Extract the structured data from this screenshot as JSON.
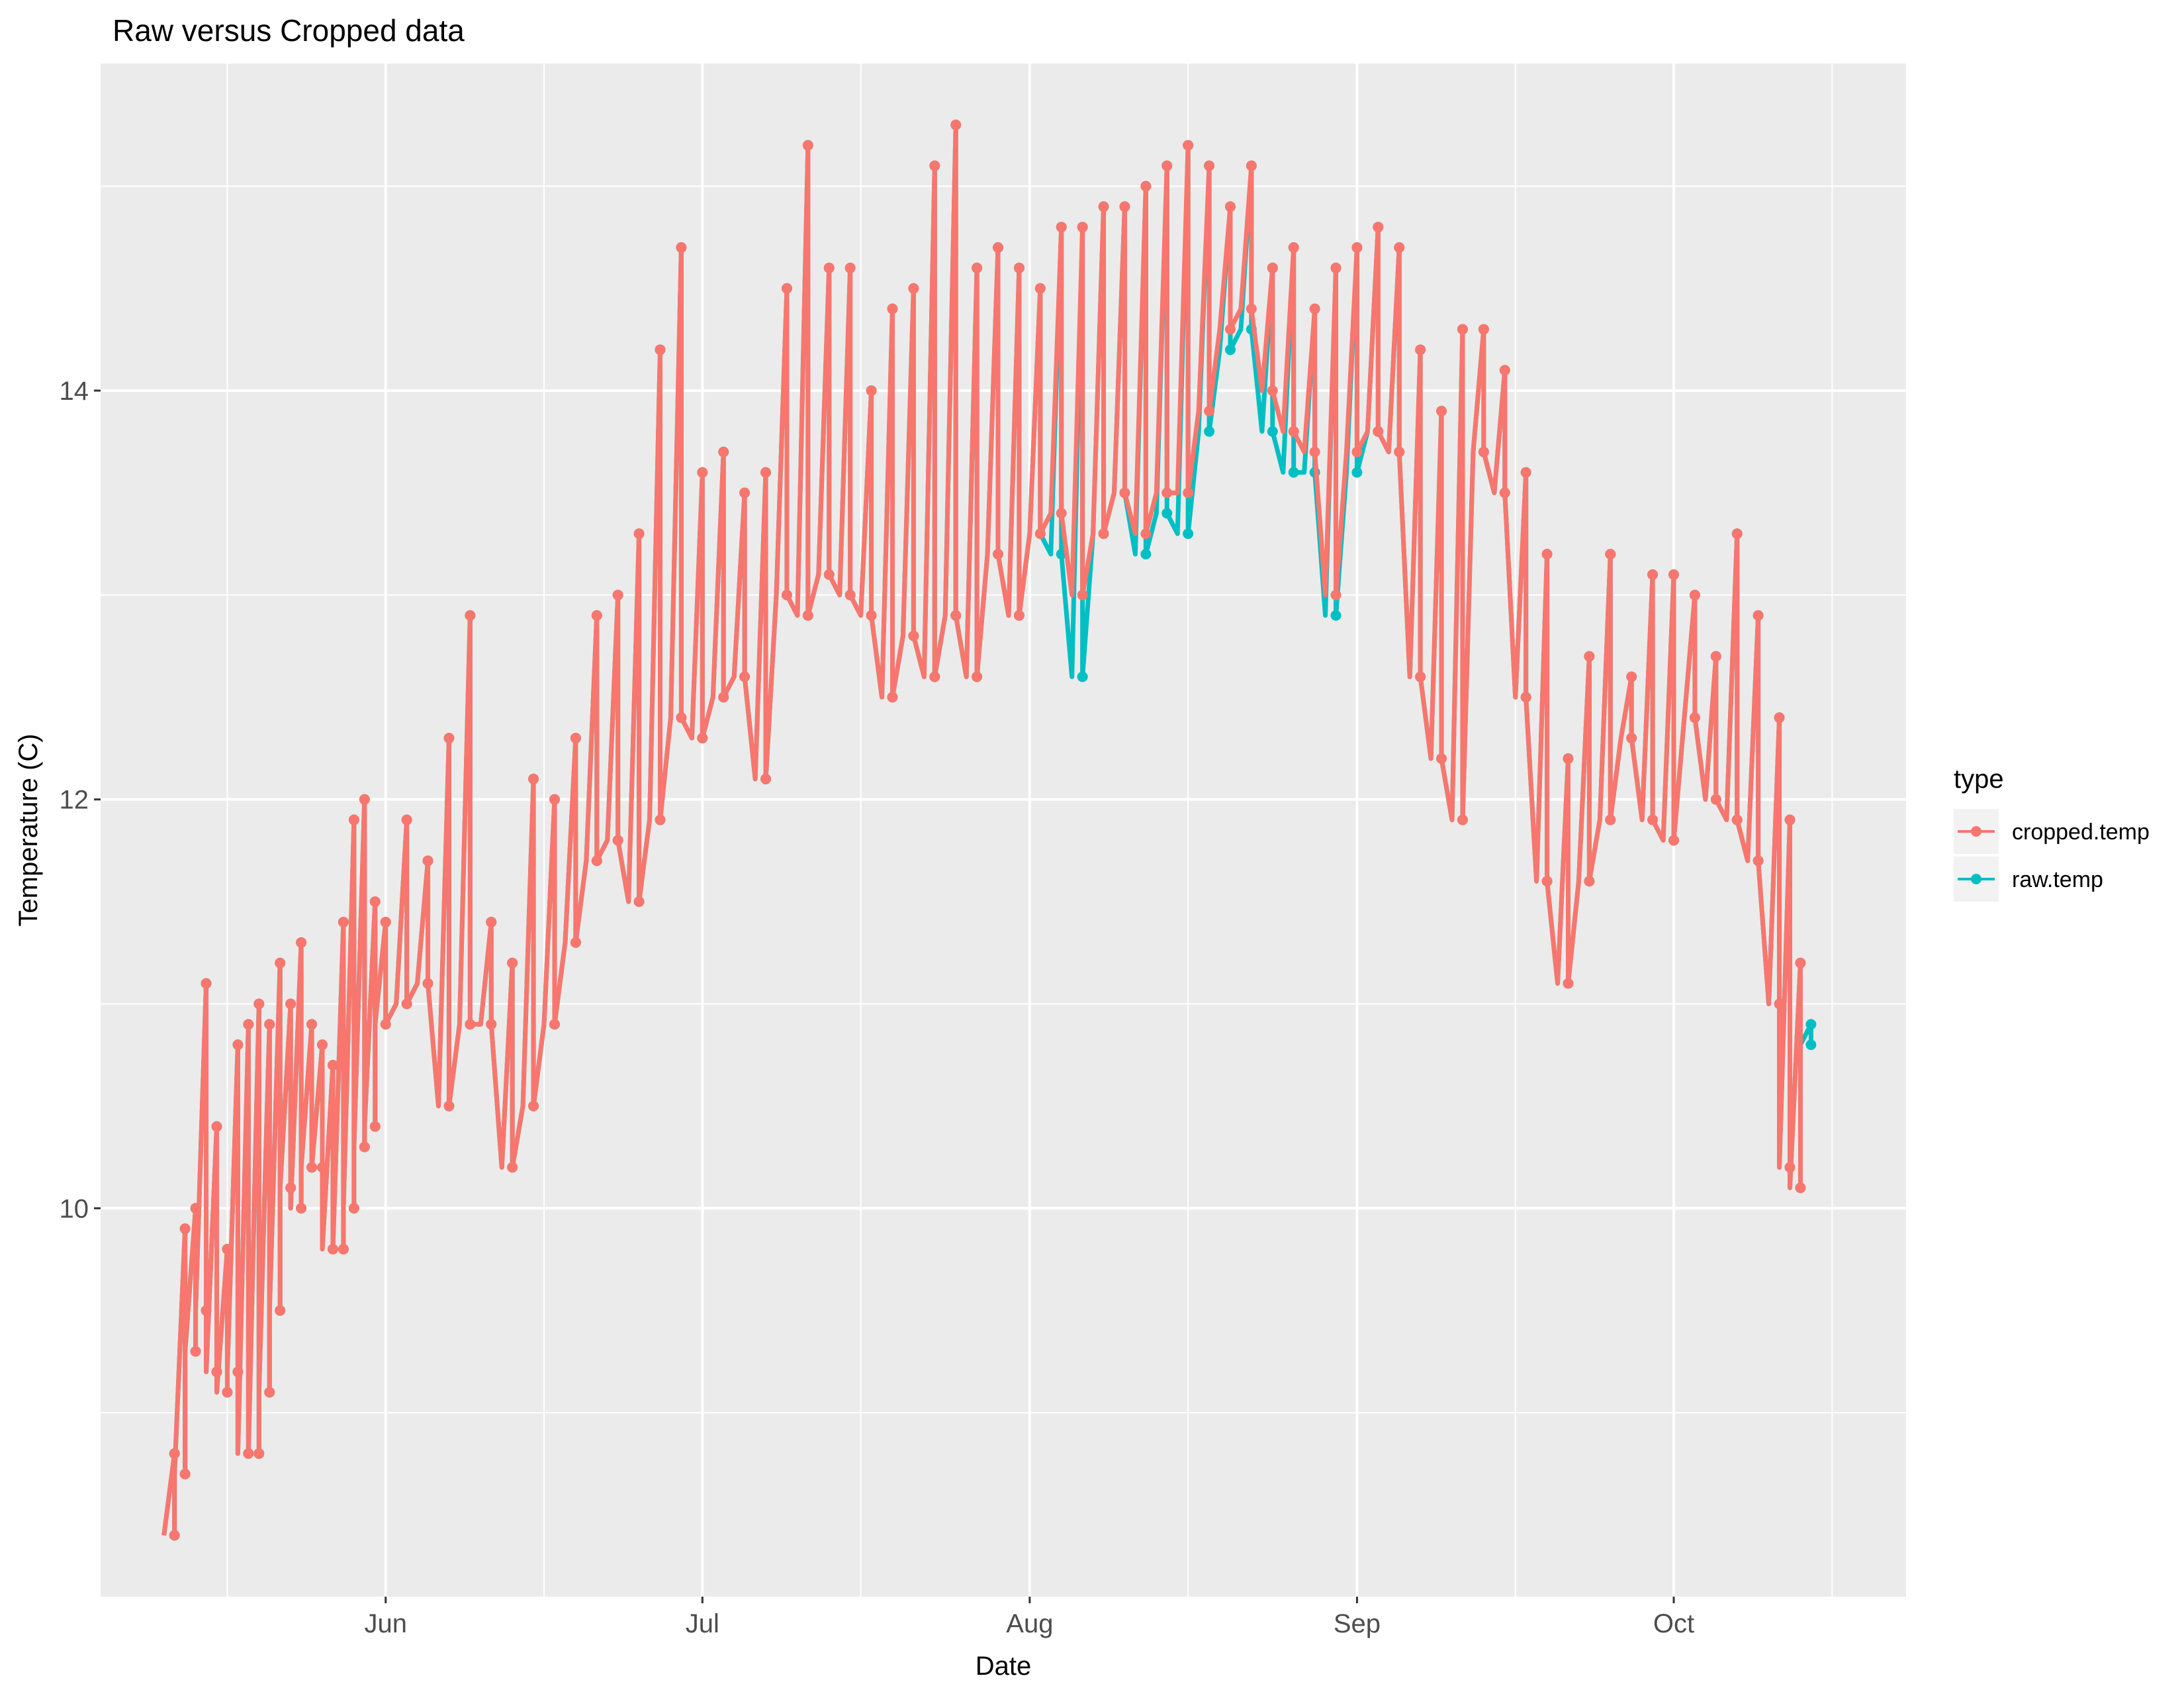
{
  "chart_data": {
    "type": "line",
    "title": "Raw versus Cropped data",
    "xlabel": "Date",
    "ylabel": "Temperature (C)",
    "x_ticks": [
      {
        "label": "Jun",
        "date": "2019-06-01"
      },
      {
        "label": "Jul",
        "date": "2019-07-01"
      },
      {
        "label": "Aug",
        "date": "2019-08-01"
      },
      {
        "label": "Sep",
        "date": "2019-09-01"
      },
      {
        "label": "Oct",
        "date": "2019-10-01"
      }
    ],
    "y_ticks": [
      10,
      12,
      14
    ],
    "xlim": [
      "2019-05-05",
      "2019-10-23"
    ],
    "ylim": [
      8.1,
      15.6
    ],
    "grid": true,
    "legend": {
      "title": "type",
      "position": "right",
      "entries": [
        "cropped.temp",
        "raw.temp"
      ]
    },
    "series": [
      {
        "name": "raw.temp",
        "color": "#00BFC4",
        "x": [
          "2019-05-12",
          "2019-05-13",
          "2019-05-14",
          "2019-05-15",
          "2019-05-16",
          "2019-05-17",
          "2019-05-18",
          "2019-05-19",
          "2019-05-20",
          "2019-05-21",
          "2019-05-22",
          "2019-05-23",
          "2019-05-24",
          "2019-05-25",
          "2019-05-26",
          "2019-05-27",
          "2019-05-28",
          "2019-05-29",
          "2019-05-30",
          "2019-05-31",
          "2019-06-01",
          "2019-06-03",
          "2019-06-05",
          "2019-06-07",
          "2019-06-09",
          "2019-06-11",
          "2019-06-13",
          "2019-06-15",
          "2019-06-17",
          "2019-06-19",
          "2019-06-21",
          "2019-06-23",
          "2019-06-25",
          "2019-06-27",
          "2019-06-29",
          "2019-07-01",
          "2019-07-03",
          "2019-07-05",
          "2019-07-07",
          "2019-07-09",
          "2019-07-11",
          "2019-07-13",
          "2019-07-15",
          "2019-07-17",
          "2019-07-19",
          "2019-07-21",
          "2019-07-23",
          "2019-07-25",
          "2019-07-27",
          "2019-07-29",
          "2019-07-31",
          "2019-08-02",
          "2019-08-04",
          "2019-08-06",
          "2019-08-08",
          "2019-08-10",
          "2019-08-12",
          "2019-08-14",
          "2019-08-16",
          "2019-08-18",
          "2019-08-20",
          "2019-08-22",
          "2019-08-24",
          "2019-08-26",
          "2019-08-28",
          "2019-08-30",
          "2019-09-01",
          "2019-09-03",
          "2019-09-05",
          "2019-09-07",
          "2019-09-09",
          "2019-09-11",
          "2019-09-13",
          "2019-09-15",
          "2019-09-17",
          "2019-09-19",
          "2019-09-21",
          "2019-09-23",
          "2019-09-25",
          "2019-09-27",
          "2019-09-29",
          "2019-10-01",
          "2019-10-03",
          "2019-10-05",
          "2019-10-07",
          "2019-10-09",
          "2019-10-11",
          "2019-10-12",
          "2019-10-13",
          "2019-10-14"
        ],
        "min": [
          8.4,
          8.7,
          9.3,
          9.5,
          9.2,
          9.1,
          9.2,
          8.8,
          8.8,
          9.1,
          9.5,
          10.1,
          10.0,
          10.2,
          10.2,
          9.8,
          9.8,
          10.0,
          10.3,
          10.4,
          10.9,
          11.0,
          11.1,
          10.5,
          10.9,
          10.9,
          10.2,
          10.5,
          10.9,
          11.3,
          11.7,
          11.8,
          11.5,
          11.9,
          12.4,
          12.3,
          12.5,
          12.6,
          12.1,
          13.0,
          12.9,
          13.1,
          13.0,
          12.9,
          12.5,
          12.8,
          12.6,
          12.9,
          12.6,
          13.2,
          12.9,
          13.3,
          13.2,
          12.6,
          13.3,
          13.5,
          13.2,
          13.4,
          13.3,
          13.8,
          14.2,
          14.3,
          13.8,
          13.6,
          13.6,
          12.9,
          13.6,
          13.8,
          13.7,
          12.6,
          12.2,
          11.9,
          13.7,
          13.5,
          12.5,
          11.6,
          11.1,
          11.6,
          11.9,
          12.3,
          11.9,
          11.8,
          12.4,
          12.0,
          11.9,
          11.7,
          11.0,
          10.2,
          10.1,
          10.8
        ],
        "max": [
          8.8,
          9.9,
          10.0,
          11.1,
          10.4,
          9.8,
          10.8,
          10.9,
          11.0,
          10.9,
          11.2,
          11.0,
          11.3,
          10.9,
          10.8,
          10.7,
          11.4,
          11.9,
          12.0,
          11.5,
          11.4,
          11.9,
          11.7,
          12.3,
          12.9,
          11.4,
          11.2,
          12.1,
          12.0,
          12.3,
          12.9,
          13.0,
          13.3,
          14.2,
          14.7,
          13.6,
          13.7,
          13.5,
          13.6,
          14.5,
          15.2,
          14.6,
          14.6,
          14.0,
          14.4,
          14.5,
          15.1,
          15.3,
          14.6,
          14.7,
          14.6,
          14.5,
          14.8,
          14.8,
          14.9,
          14.9,
          15.0,
          15.1,
          15.2,
          15.1,
          14.9,
          15.1,
          14.6,
          14.7,
          14.4,
          14.6,
          14.7,
          14.8,
          14.7,
          14.2,
          13.9,
          14.3,
          14.3,
          14.1,
          13.6,
          13.2,
          12.2,
          12.7,
          13.2,
          12.6,
          13.1,
          13.1,
          13.0,
          12.7,
          13.3,
          12.9,
          12.4,
          11.9,
          11.2,
          10.9
        ]
      },
      {
        "name": "cropped.temp",
        "color": "#F8766D",
        "x": [
          "2019-05-12",
          "2019-05-13",
          "2019-05-14",
          "2019-05-15",
          "2019-05-16",
          "2019-05-17",
          "2019-05-18",
          "2019-05-19",
          "2019-05-20",
          "2019-05-21",
          "2019-05-22",
          "2019-05-23",
          "2019-05-24",
          "2019-05-25",
          "2019-05-26",
          "2019-05-27",
          "2019-05-28",
          "2019-05-29",
          "2019-05-30",
          "2019-05-31",
          "2019-06-01",
          "2019-06-03",
          "2019-06-05",
          "2019-06-07",
          "2019-06-09",
          "2019-06-11",
          "2019-06-13",
          "2019-06-15",
          "2019-06-17",
          "2019-06-19",
          "2019-06-21",
          "2019-06-23",
          "2019-06-25",
          "2019-06-27",
          "2019-06-29",
          "2019-07-01",
          "2019-07-03",
          "2019-07-05",
          "2019-07-07",
          "2019-07-09",
          "2019-07-11",
          "2019-07-13",
          "2019-07-15",
          "2019-07-17",
          "2019-07-19",
          "2019-07-21",
          "2019-07-23",
          "2019-07-25",
          "2019-07-27",
          "2019-07-29",
          "2019-07-31",
          "2019-08-02",
          "2019-08-04",
          "2019-08-06",
          "2019-08-08",
          "2019-08-10",
          "2019-08-12",
          "2019-08-14",
          "2019-08-16",
          "2019-08-18",
          "2019-08-20",
          "2019-08-22",
          "2019-08-24",
          "2019-08-26",
          "2019-08-28",
          "2019-08-30",
          "2019-09-01",
          "2019-09-03",
          "2019-09-05",
          "2019-09-07",
          "2019-09-09",
          "2019-09-11",
          "2019-09-13",
          "2019-09-15",
          "2019-09-17",
          "2019-09-19",
          "2019-09-21",
          "2019-09-23",
          "2019-09-25",
          "2019-09-27",
          "2019-09-29",
          "2019-10-01",
          "2019-10-03",
          "2019-10-05",
          "2019-10-07",
          "2019-10-09",
          "2019-10-11",
          "2019-10-12",
          "2019-10-13"
        ],
        "min": [
          8.4,
          8.7,
          9.3,
          9.5,
          9.2,
          9.1,
          9.2,
          8.8,
          8.8,
          9.1,
          9.5,
          10.1,
          10.0,
          10.2,
          10.2,
          9.8,
          9.8,
          10.0,
          10.3,
          10.4,
          10.9,
          11.0,
          11.1,
          10.5,
          10.9,
          10.9,
          10.2,
          10.5,
          10.9,
          11.3,
          11.7,
          11.8,
          11.5,
          11.9,
          12.4,
          12.3,
          12.5,
          12.6,
          12.1,
          13.0,
          12.9,
          13.1,
          13.0,
          12.9,
          12.5,
          12.8,
          12.6,
          12.9,
          12.6,
          13.2,
          12.9,
          13.3,
          13.4,
          13.0,
          13.3,
          13.5,
          13.3,
          13.5,
          13.5,
          13.9,
          14.3,
          14.4,
          14.0,
          13.8,
          13.7,
          13.0,
          13.7,
          13.8,
          13.7,
          12.6,
          12.2,
          11.9,
          13.7,
          13.5,
          12.5,
          11.6,
          11.1,
          11.6,
          11.9,
          12.3,
          11.9,
          11.8,
          12.4,
          12.0,
          11.9,
          11.7,
          11.0,
          10.2,
          10.1
        ],
        "max": [
          8.8,
          9.9,
          10.0,
          11.1,
          10.4,
          9.8,
          10.8,
          10.9,
          11.0,
          10.9,
          11.2,
          11.0,
          11.3,
          10.9,
          10.8,
          10.7,
          11.4,
          11.9,
          12.0,
          11.5,
          11.4,
          11.9,
          11.7,
          12.3,
          12.9,
          11.4,
          11.2,
          12.1,
          12.0,
          12.3,
          12.9,
          13.0,
          13.3,
          14.2,
          14.7,
          13.6,
          13.7,
          13.5,
          13.6,
          14.5,
          15.2,
          14.6,
          14.6,
          14.0,
          14.4,
          14.5,
          15.1,
          15.3,
          14.6,
          14.7,
          14.6,
          14.5,
          14.8,
          14.8,
          14.9,
          14.9,
          15.0,
          15.1,
          15.2,
          15.1,
          14.9,
          15.1,
          14.6,
          14.7,
          14.4,
          14.6,
          14.7,
          14.8,
          14.7,
          14.2,
          13.9,
          14.3,
          14.3,
          14.1,
          13.6,
          13.2,
          12.2,
          12.7,
          13.2,
          12.6,
          13.1,
          13.1,
          13.0,
          12.7,
          13.3,
          12.9,
          12.4,
          11.9,
          11.2
        ]
      }
    ]
  }
}
